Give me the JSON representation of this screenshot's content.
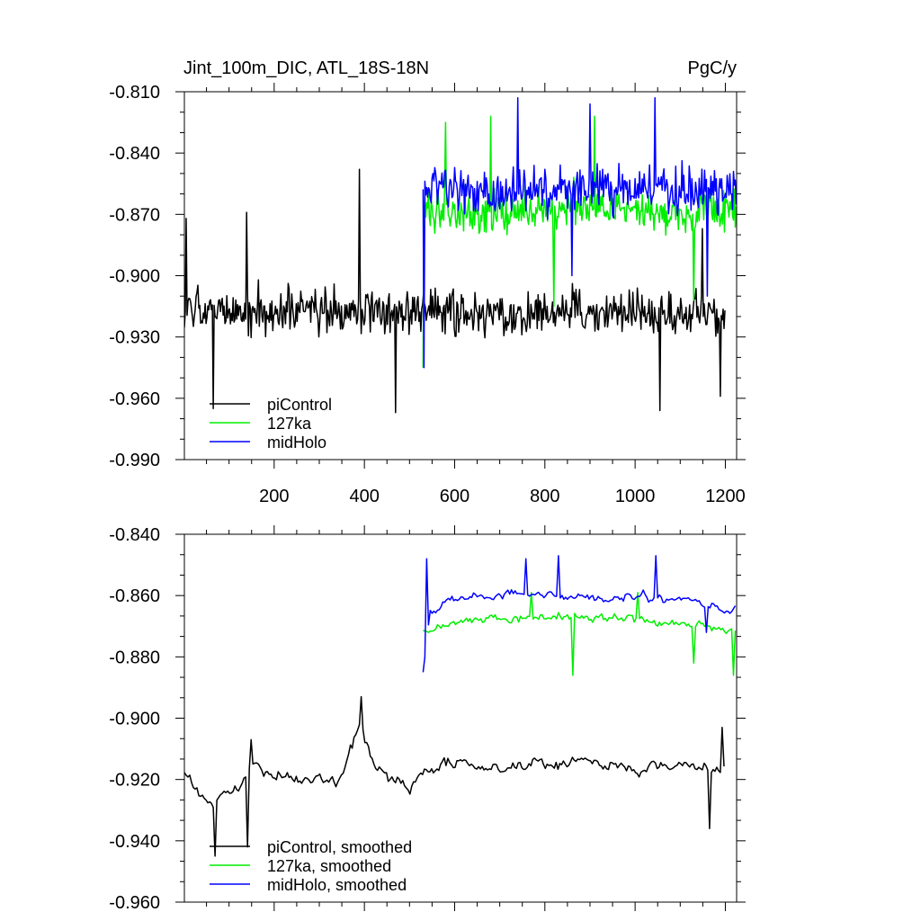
{
  "colors": {
    "piControl": "#000000",
    "127ka": "#00ee00",
    "midHolo": "#0000ff",
    "axis": "#000000",
    "background": "#ffffff"
  },
  "chart_data": [
    {
      "type": "line",
      "title": "Jint_100m_DIC, ATL_18S-18N",
      "units": "PgC/y",
      "xlim": [
        1,
        1225
      ],
      "ylim": [
        -0.99,
        -0.81
      ],
      "xticks": [
        200,
        400,
        600,
        800,
        1000,
        1200
      ],
      "yticks": [
        -0.81,
        -0.84,
        -0.87,
        -0.9,
        -0.93,
        -0.96,
        -0.99
      ],
      "ytick_labels": [
        "-0.810",
        "-0.840",
        "-0.870",
        "-0.900",
        "-0.930",
        "-0.960",
        "-0.990"
      ],
      "xtick_labels": [
        "200",
        "400",
        "600",
        "800",
        "1000",
        "1200"
      ],
      "legend_placement": "bottom-left",
      "series": [
        {
          "name": "piControl",
          "color": "#000000",
          "x_range": [
            1,
            1200
          ],
          "step": 2,
          "mean": -0.918,
          "noise_amplitude": 0.017,
          "peak_points": [
            [
              6,
              -0.872
            ],
            [
              140,
              -0.869
            ],
            [
              390,
              -0.848
            ],
            [
              1150,
              -0.877
            ]
          ],
          "min_points": [
            [
              65,
              -0.965
            ],
            [
              470,
              -0.967
            ],
            [
              1055,
              -0.966
            ],
            [
              1190,
              -0.959
            ]
          ]
        },
        {
          "name": "127ka",
          "color": "#00ee00",
          "x_range": [
            530,
            1225
          ],
          "step": 2,
          "mean": -0.868,
          "noise_amplitude": 0.017,
          "peak_points": [
            [
              680,
              -0.822
            ],
            [
              910,
              -0.822
            ],
            [
              580,
              -0.825
            ]
          ],
          "min_points": [
            [
              530,
              -0.945
            ],
            [
              820,
              -0.915
            ],
            [
              1130,
              -0.912
            ]
          ]
        },
        {
          "name": "midHolo",
          "color": "#0000ff",
          "x_range": [
            530,
            1225
          ],
          "step": 2,
          "mean": -0.858,
          "noise_amplitude": 0.017,
          "peak_points": [
            [
              740,
              -0.813
            ],
            [
              1045,
              -0.813
            ],
            [
              900,
              -0.816
            ]
          ],
          "min_points": [
            [
              533,
              -0.945
            ],
            [
              860,
              -0.9
            ],
            [
              1160,
              -0.91
            ]
          ]
        }
      ]
    },
    {
      "type": "line",
      "title": "",
      "xlim": [
        1,
        1225
      ],
      "ylim": [
        -0.96,
        -0.84
      ],
      "xticks": [
        200,
        400,
        600,
        800,
        1000,
        1200
      ],
      "yticks": [
        -0.84,
        -0.86,
        -0.88,
        -0.9,
        -0.92,
        -0.94,
        -0.96
      ],
      "ytick_labels": [
        "-0.840",
        "-0.860",
        "-0.880",
        "-0.900",
        "-0.920",
        "-0.940",
        "-0.960"
      ],
      "legend_placement": "bottom-left",
      "series": [
        {
          "name": "piControl, smoothed",
          "color": "#000000",
          "x_range": [
            1,
            1200
          ],
          "step": 4,
          "mean": -0.917,
          "noise_amplitude": 0.0065,
          "anchors": [
            [
              1,
              -0.916
            ],
            [
              50,
              -0.928
            ],
            [
              100,
              -0.925
            ],
            [
              150,
              -0.917
            ],
            [
              250,
              -0.919
            ],
            [
              340,
              -0.922
            ],
            [
              390,
              -0.902
            ],
            [
              420,
              -0.916
            ],
            [
              460,
              -0.919
            ],
            [
              500,
              -0.922
            ],
            [
              530,
              -0.918
            ],
            [
              600,
              -0.914
            ],
            [
              700,
              -0.917
            ],
            [
              800,
              -0.915
            ],
            [
              900,
              -0.914
            ],
            [
              1000,
              -0.917
            ],
            [
              1100,
              -0.915
            ],
            [
              1200,
              -0.916
            ]
          ],
          "peak_points": [
            [
              395,
              -0.893
            ],
            [
              1195,
              -0.903
            ],
            [
              150,
              -0.907
            ]
          ],
          "min_points": [
            [
              70,
              -0.945
            ],
            [
              140,
              -0.942
            ],
            [
              1165,
              -0.936
            ]
          ]
        },
        {
          "name": "127ka, smoothed",
          "color": "#00ee00",
          "x_range": [
            530,
            1225
          ],
          "step": 4,
          "mean": -0.869,
          "noise_amplitude": 0.0042,
          "anchors": [
            [
              530,
              -0.872
            ],
            [
              600,
              -0.869
            ],
            [
              700,
              -0.868
            ],
            [
              800,
              -0.867
            ],
            [
              900,
              -0.867
            ],
            [
              1000,
              -0.868
            ],
            [
              1100,
              -0.869
            ],
            [
              1225,
              -0.872
            ]
          ],
          "peak_points": [
            [
              770,
              -0.859
            ],
            [
              1005,
              -0.859
            ]
          ],
          "min_points": [
            [
              862,
              -0.886
            ],
            [
              1218,
              -0.886
            ],
            [
              1130,
              -0.882
            ]
          ]
        },
        {
          "name": "midHolo, smoothed",
          "color": "#0000ff",
          "x_range": [
            530,
            1225
          ],
          "step": 4,
          "mean": -0.861,
          "noise_amplitude": 0.0045,
          "anchors": [
            [
              530,
              -0.885
            ],
            [
              545,
              -0.865
            ],
            [
              600,
              -0.861
            ],
            [
              700,
              -0.86
            ],
            [
              800,
              -0.86
            ],
            [
              900,
              -0.861
            ],
            [
              1000,
              -0.86
            ],
            [
              1100,
              -0.862
            ],
            [
              1200,
              -0.864
            ],
            [
              1225,
              -0.864
            ]
          ],
          "peak_points": [
            [
              540,
              -0.848
            ],
            [
              830,
              -0.847
            ],
            [
              1045,
              -0.847
            ],
            [
              760,
              -0.848
            ]
          ],
          "min_points": [
            [
              530,
              -0.885
            ],
            [
              1160,
              -0.872
            ]
          ]
        }
      ]
    }
  ]
}
